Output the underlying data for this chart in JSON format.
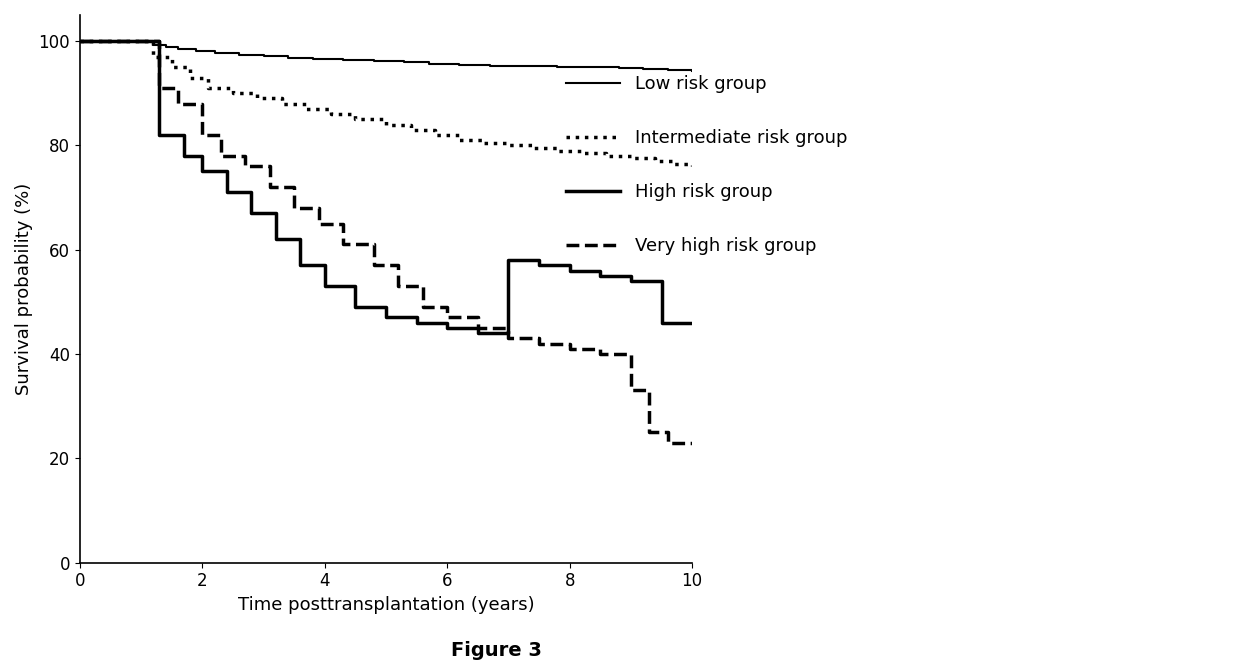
{
  "title": "Figure 3",
  "xlabel": "Time posttransplantation (years)",
  "ylabel": "Survival probability (%)",
  "xlim": [
    0,
    10
  ],
  "ylim": [
    0,
    105
  ],
  "xticks": [
    0,
    2,
    4,
    6,
    8,
    10
  ],
  "yticks": [
    0,
    20,
    40,
    60,
    80,
    100
  ],
  "legend_labels": [
    "Low risk group",
    "Intermediate risk group",
    "High risk group",
    "Very high risk group"
  ],
  "low_risk_x": [
    0,
    1.0,
    1.2,
    1.4,
    1.6,
    1.9,
    2.2,
    2.6,
    3.0,
    3.4,
    3.8,
    4.3,
    4.8,
    5.3,
    5.7,
    6.2,
    6.7,
    7.2,
    7.8,
    8.3,
    8.8,
    9.2,
    9.6,
    10.0
  ],
  "low_risk_y": [
    100,
    100,
    99.2,
    98.8,
    98.5,
    98.1,
    97.8,
    97.4,
    97.1,
    96.8,
    96.5,
    96.3,
    96.1,
    95.9,
    95.7,
    95.5,
    95.3,
    95.2,
    95.1,
    95.0,
    94.9,
    94.7,
    94.5,
    94.3
  ],
  "int_risk_x": [
    0,
    1.0,
    1.2,
    1.5,
    1.8,
    2.1,
    2.5,
    2.9,
    3.3,
    3.7,
    4.1,
    4.5,
    5.0,
    5.4,
    5.8,
    6.2,
    6.6,
    7.0,
    7.4,
    7.8,
    8.2,
    8.6,
    9.0,
    9.4,
    9.7,
    10.0
  ],
  "int_risk_y": [
    100,
    100,
    97,
    95,
    93,
    91,
    90,
    89,
    88,
    87,
    86,
    85,
    84,
    83,
    82,
    81,
    80.5,
    80,
    79.5,
    79,
    78.5,
    78,
    77.5,
    77,
    76.5,
    76
  ],
  "high_risk_x": [
    0,
    1.0,
    1.3,
    1.7,
    2.0,
    2.4,
    2.8,
    3.2,
    3.6,
    4.0,
    4.5,
    5.0,
    5.5,
    6.0,
    6.5,
    7.0,
    7.5,
    8.0,
    8.5,
    9.0,
    9.5,
    10.0
  ],
  "high_risk_y": [
    100,
    100,
    82,
    78,
    75,
    71,
    67,
    62,
    57,
    53,
    49,
    47,
    46,
    45,
    44,
    58,
    57,
    56,
    55,
    54,
    46,
    46
  ],
  "vhigh_risk_x": [
    0,
    1.0,
    1.3,
    1.6,
    2.0,
    2.3,
    2.7,
    3.1,
    3.5,
    3.9,
    4.3,
    4.8,
    5.2,
    5.6,
    6.0,
    6.5,
    7.0,
    7.5,
    8.0,
    8.5,
    9.0,
    9.3,
    9.6,
    10.0
  ],
  "vhigh_risk_y": [
    100,
    100,
    91,
    88,
    82,
    78,
    76,
    72,
    68,
    65,
    61,
    57,
    53,
    49,
    47,
    45,
    43,
    42,
    41,
    40,
    33,
    25,
    23,
    23
  ],
  "background_color": "#ffffff",
  "figure_caption": "Figure 3",
  "caption_fontsize": 14,
  "axis_fontsize": 13,
  "tick_fontsize": 12,
  "legend_fontsize": 13,
  "low_lw": 1.5,
  "int_lw": 2.5,
  "high_lw": 2.5,
  "vhigh_lw": 2.5
}
